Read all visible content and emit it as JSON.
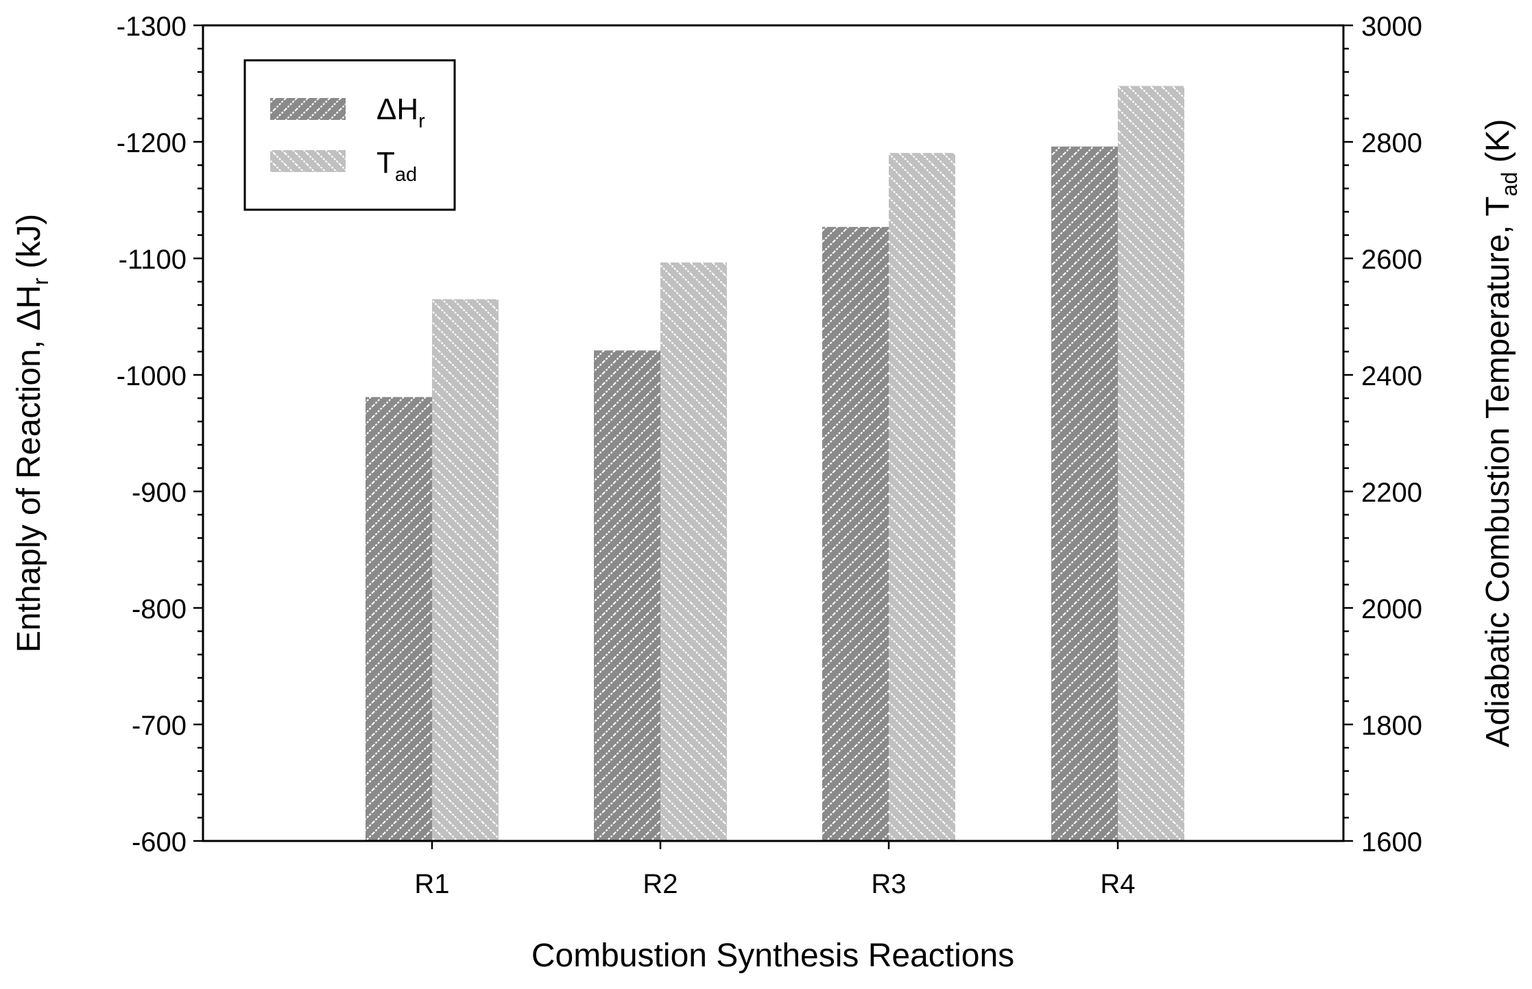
{
  "chart_data": {
    "type": "bar",
    "xlabel": "Combustion Synthesis Reactions",
    "categories": [
      "R1",
      "R2",
      "R3",
      "R4"
    ],
    "series": [
      {
        "name": "ΔH",
        "sub": "r",
        "axis": "left",
        "values": [
          -981,
          -1021,
          -1127,
          -1196
        ],
        "color": "#8a8a8a",
        "hatch": "forward"
      },
      {
        "name": "T",
        "sub": "ad",
        "axis": "right",
        "values": [
          2530,
          2593,
          2781,
          2896
        ],
        "color": "#c0c0c0",
        "hatch": "backward"
      }
    ],
    "left_axis": {
      "label_main": "Enthaply of Reaction, ΔH",
      "label_sub": "r",
      "label_tail": " (kJ)",
      "range": [
        -600,
        -1300
      ],
      "ticks": [
        -600,
        -700,
        -800,
        -900,
        -1000,
        -1100,
        -1200,
        -1300
      ]
    },
    "right_axis": {
      "label_main": "Adiabatic Combustion Temperature, T",
      "label_sub": "ad",
      "label_tail": " (K)",
      "range": [
        1600,
        3000
      ],
      "ticks": [
        1600,
        1800,
        2000,
        2200,
        2400,
        2600,
        2800,
        3000
      ]
    },
    "legend": {
      "position": "top-left"
    },
    "grid": false
  }
}
